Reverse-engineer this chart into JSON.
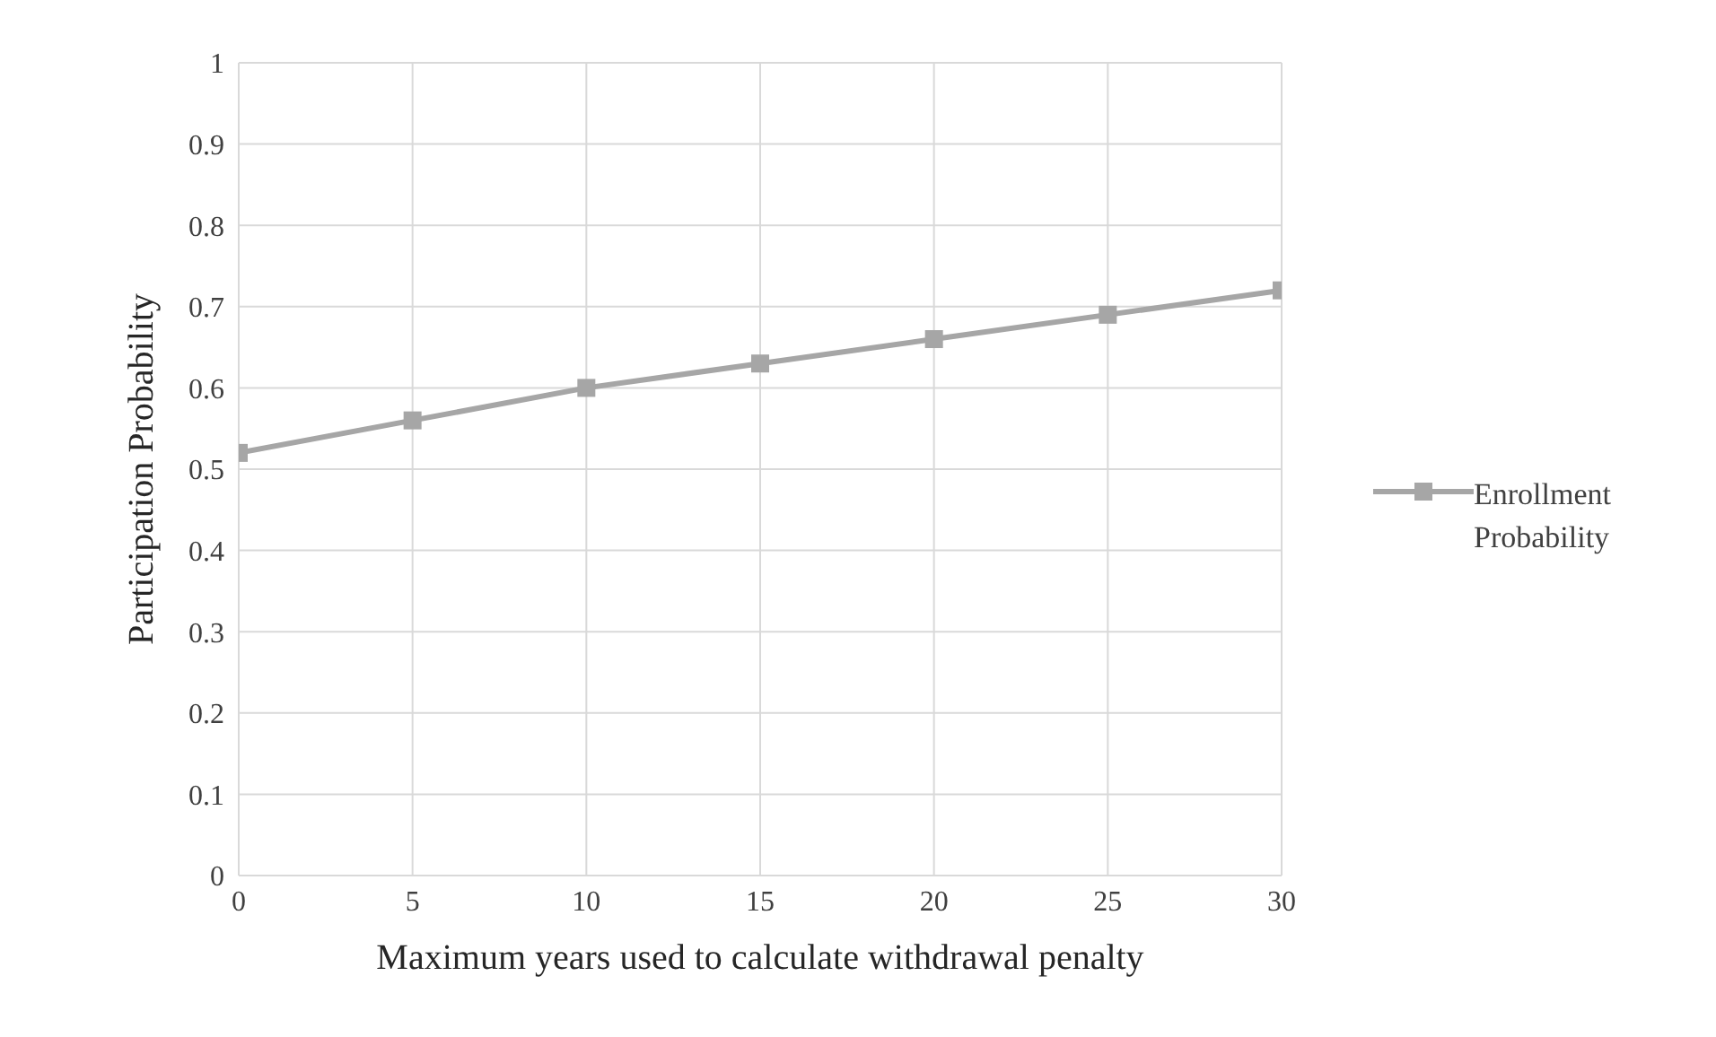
{
  "chart_data": {
    "type": "line",
    "xlabel": "Maximum years used to calculate withdrawal penalty",
    "ylabel": "Participation Probability",
    "x": [
      0,
      5,
      10,
      15,
      20,
      25,
      30
    ],
    "series": [
      {
        "name": "Enrollment Probability",
        "color": "#a6a6a6",
        "values": [
          0.52,
          0.56,
          0.6,
          0.63,
          0.66,
          0.69,
          0.72
        ]
      }
    ],
    "xlim": [
      0,
      30
    ],
    "xticks": [
      0,
      5,
      10,
      15,
      20,
      25,
      30
    ],
    "ylim": [
      0,
      1
    ],
    "yticks": [
      0,
      0.1,
      0.2,
      0.3,
      0.4,
      0.5,
      0.6,
      0.7,
      0.8,
      0.9,
      1
    ],
    "grid": true,
    "legend": "right",
    "marker": "square",
    "line_style": "solid"
  }
}
